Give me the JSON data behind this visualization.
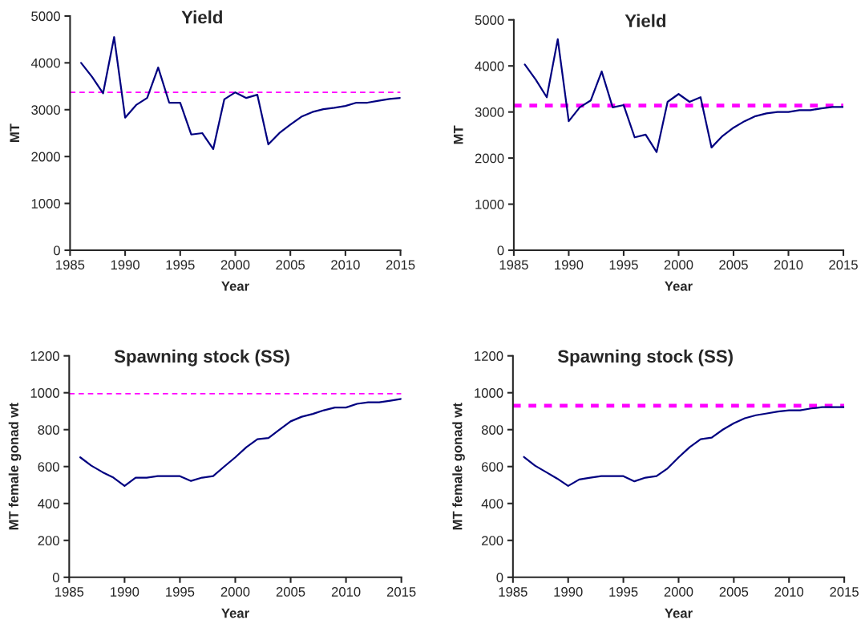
{
  "chart_data": [
    {
      "type": "line",
      "title": "Yield",
      "xlabel": "Year",
      "ylabel": "MT",
      "xlim": [
        1985,
        2015
      ],
      "xticks": [
        1985,
        1990,
        1995,
        2000,
        2005,
        2010,
        2015
      ],
      "ylim": [
        0,
        5000
      ],
      "yticks": [
        0,
        1000,
        2000,
        3000,
        4000,
        5000
      ],
      "grid": false,
      "legend": false,
      "marker": "none",
      "x": [
        1986,
        1987,
        1988,
        1989,
        1990,
        1991,
        1992,
        1993,
        1994,
        1995,
        1996,
        1997,
        1998,
        1999,
        2000,
        2001,
        2002,
        2003,
        2004,
        2005,
        2006,
        2007,
        2008,
        2009,
        2010,
        2011,
        2012,
        2013,
        2014,
        2015
      ],
      "series": [
        {
          "color": "#000080",
          "line_style": "solid",
          "values": [
            4000,
            3700,
            3350,
            4550,
            2830,
            3100,
            3250,
            3900,
            3150,
            3150,
            2470,
            2500,
            2160,
            3220,
            3370,
            3250,
            3320,
            2260,
            2500,
            2680,
            2850,
            2950,
            3010,
            3040,
            3080,
            3150,
            3150,
            3190,
            3230,
            3250
          ]
        }
      ],
      "ref_lines": [
        {
          "axis": "y",
          "value": 3370,
          "color": "#ff00ff",
          "line_style": "dashed"
        }
      ]
    },
    {
      "type": "line",
      "title": "Yield",
      "xlabel": "Year",
      "ylabel": "MT",
      "xlim": [
        1985,
        2015
      ],
      "xticks": [
        1985,
        1990,
        1995,
        2000,
        2005,
        2010,
        2015
      ],
      "ylim": [
        0,
        5000
      ],
      "yticks": [
        0,
        1000,
        2000,
        3000,
        4000,
        5000
      ],
      "grid": false,
      "legend": false,
      "marker": "none",
      "x": [
        1986,
        1987,
        1988,
        1989,
        1990,
        1991,
        1992,
        1993,
        1994,
        1995,
        1996,
        1997,
        1998,
        1999,
        2000,
        2001,
        2002,
        2003,
        2004,
        2005,
        2006,
        2007,
        2008,
        2009,
        2010,
        2011,
        2012,
        2013,
        2014,
        2015
      ],
      "series": [
        {
          "color": "#000080",
          "line_style": "solid",
          "values": [
            4030,
            3700,
            3320,
            4580,
            2800,
            3100,
            3250,
            3880,
            3100,
            3150,
            2450,
            2510,
            2130,
            3220,
            3390,
            3220,
            3320,
            2230,
            2480,
            2660,
            2800,
            2910,
            2970,
            3000,
            3000,
            3040,
            3040,
            3080,
            3110,
            3110
          ]
        }
      ],
      "ref_lines": [
        {
          "axis": "y",
          "value": 3140,
          "color": "#ff00ff",
          "line_style": "dotted"
        }
      ]
    },
    {
      "type": "line",
      "title": "Spawning stock (SS)",
      "xlabel": "Year",
      "ylabel": "MT female gonad wt",
      "xlim": [
        1985,
        2015
      ],
      "xticks": [
        1985,
        1990,
        1995,
        2000,
        2005,
        2010,
        2015
      ],
      "ylim": [
        0,
        1200
      ],
      "yticks": [
        0,
        200,
        400,
        600,
        800,
        1000,
        1200
      ],
      "grid": false,
      "legend": false,
      "marker": "none",
      "x": [
        1986,
        1987,
        1988,
        1989,
        1990,
        1991,
        1992,
        1993,
        1994,
        1995,
        1996,
        1997,
        1998,
        1999,
        2000,
        2001,
        2002,
        2003,
        2004,
        2005,
        2006,
        2007,
        2008,
        2009,
        2010,
        2011,
        2012,
        2013,
        2014,
        2015
      ],
      "series": [
        {
          "color": "#000080",
          "line_style": "solid",
          "values": [
            650,
            605,
            570,
            540,
            495,
            540,
            540,
            548,
            548,
            548,
            522,
            540,
            548,
            600,
            650,
            705,
            748,
            755,
            800,
            845,
            870,
            885,
            905,
            920,
            920,
            940,
            948,
            948,
            957,
            967
          ]
        }
      ],
      "ref_lines": [
        {
          "axis": "y",
          "value": 995,
          "color": "#ff00ff",
          "line_style": "dashed"
        }
      ]
    },
    {
      "type": "line",
      "title": "Spawning stock (SS)",
      "xlabel": "Year",
      "ylabel": "MT female gonad wt",
      "xlim": [
        1985,
        2015
      ],
      "xticks": [
        1985,
        1990,
        1995,
        2000,
        2005,
        2010,
        2015
      ],
      "ylim": [
        0,
        1200
      ],
      "yticks": [
        0,
        200,
        400,
        600,
        800,
        1000,
        1200
      ],
      "grid": false,
      "legend": false,
      "marker": "none",
      "x": [
        1986,
        1987,
        1988,
        1989,
        1990,
        1991,
        1992,
        1993,
        1994,
        1995,
        1996,
        1997,
        1998,
        1999,
        2000,
        2001,
        2002,
        2003,
        2004,
        2005,
        2006,
        2007,
        2008,
        2009,
        2010,
        2011,
        2012,
        2013,
        2014,
        2015
      ],
      "series": [
        {
          "color": "#000080",
          "line_style": "solid",
          "values": [
            652,
            605,
            570,
            535,
            495,
            530,
            540,
            548,
            548,
            548,
            520,
            540,
            548,
            590,
            650,
            705,
            748,
            757,
            800,
            835,
            862,
            878,
            888,
            898,
            905,
            905,
            915,
            922,
            922,
            922
          ]
        }
      ],
      "ref_lines": [
        {
          "axis": "y",
          "value": 930,
          "color": "#ff00ff",
          "line_style": "dotted"
        }
      ]
    }
  ]
}
